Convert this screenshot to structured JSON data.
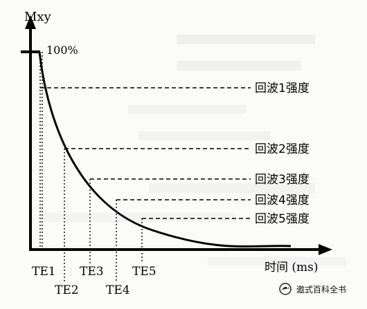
{
  "y_axis_label": "Mxy",
  "x_axis_label": "时间 (ms)",
  "start_label": "100%",
  "echo_labels": [
    "回波1强度",
    "回波2强度",
    "回波3强度",
    "回波4强度",
    "回波5强度"
  ],
  "te_labels": [
    "TE1",
    "TE2",
    "TE3",
    "TE4",
    "TE5"
  ],
  "watermark": "遨式百科全书",
  "watermark_icon": "bird-logo-icon"
}
